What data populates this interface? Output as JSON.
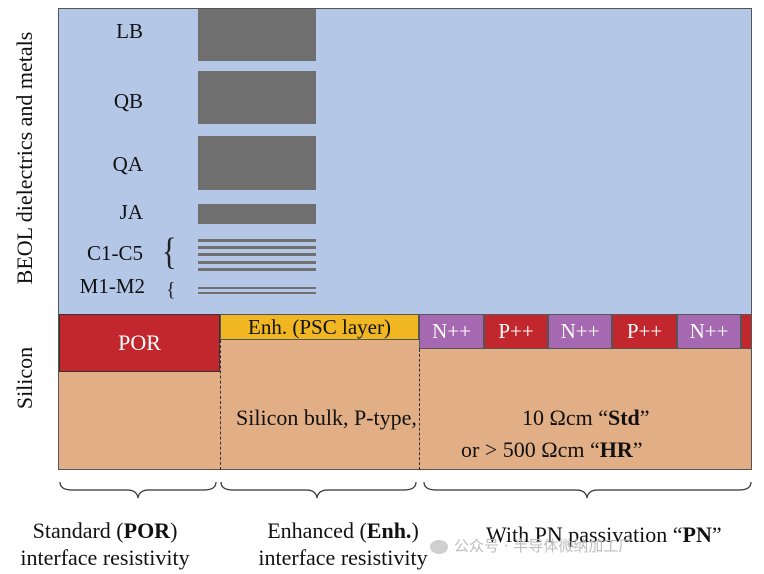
{
  "axis_labels": {
    "beol": "BEOL dielectrics and metals",
    "silicon": "Silicon"
  },
  "metal_layers": {
    "lb": "LB",
    "qb": "QB",
    "qa": "QA",
    "ja": "JA",
    "c": "C1-C5",
    "m": "M1-M2",
    "c_brace": "{",
    "m_brace": "{"
  },
  "interface": {
    "por": "POR",
    "enh": "Enh. (PSC layer)",
    "pn_segments": [
      "N++",
      "P++",
      "N++",
      "P++",
      "N++"
    ]
  },
  "bulk": {
    "line1": "Silicon bulk, P-type,",
    "std_prefix": "10 Ωcm “",
    "std_bold": "Std",
    "std_suffix": "”",
    "hr_prefix": "or > 500 Ωcm “",
    "hr_bold": "HR",
    "hr_suffix": "”"
  },
  "captions": {
    "por": {
      "pre": "Standard (",
      "bold": "POR",
      "post": ")",
      "line2": "interface resistivity"
    },
    "enh": {
      "pre": "Enhanced (",
      "bold": "Enh.",
      "post": ")",
      "line2": "interface resistivity"
    },
    "pn": {
      "pre": "With PN passivation “",
      "bold": "PN",
      "post": "”"
    }
  },
  "watermark": "公众号 · 半导体微纳加工厂",
  "colors": {
    "beol": "#b4c7e7",
    "silicon": "#e1ae85",
    "por": "#c1272d",
    "enh": "#f0b722",
    "n_plus": "#a668b0",
    "p_plus": "#c1272d",
    "metal": "#6f6f6f"
  }
}
